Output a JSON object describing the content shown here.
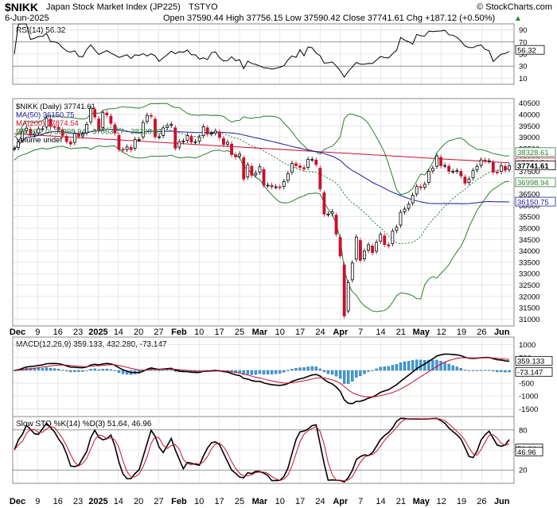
{
  "header": {
    "symbol": "$NIKK",
    "name": "Japan Stock Market Index (JP225)",
    "exchange": "TSTYO",
    "copyright": "© StockCharts.com",
    "date": "6-Jun-2025",
    "ohlc": "Open 37590.44  High 37756.15  Low 37590.42  Close 37741.61  Chg +187.12 (+0.50%)",
    "chg_arrow": "▲"
  },
  "rsi_panel": {
    "label": "RSI(14) 56.32",
    "value_badge": "56.32",
    "ticks": [
      "90",
      "70",
      "50",
      "30",
      "10"
    ]
  },
  "price_panel": {
    "legend": [
      {
        "text": "$NIKK (Daily) 37741.61",
        "color": "#000000"
      },
      {
        "text": "MA(50) 36150.75",
        "color": "#1a1a9c"
      },
      {
        "text": "MA(200) 37874.54",
        "color": "#c8102e"
      },
      {
        "text": "BB(20,2.0) 36998.94 - 37663.77 - 38328.61",
        "color": "#2e7d32"
      },
      {
        "text": "Volume undef",
        "color": "#000000"
      }
    ],
    "ticks": [
      "40500",
      "40000",
      "39500",
      "39000",
      "38500",
      "38000",
      "37500",
      "37000",
      "36500",
      "36000",
      "35500",
      "35000",
      "34500",
      "34000",
      "33500",
      "33000",
      "32500",
      "32000",
      "31500",
      "31000"
    ],
    "badges": [
      {
        "text": "38328.61",
        "value": 38328.61,
        "bg": "#ffffff",
        "fg": "#2e7d32",
        "border": "#2e7d32"
      },
      {
        "text": "37874.54",
        "value": 37874.54,
        "bg": "#ffffff",
        "fg": "#c8102e",
        "border": "#c8102e"
      },
      {
        "text": "37741.61",
        "value": 37741.61,
        "bg": "#ffffff",
        "fg": "#000000",
        "border": "#000000",
        "bold": true
      },
      {
        "text": "36998.94",
        "value": 36998.94,
        "bg": "#ffffff",
        "fg": "#2e7d32",
        "border": "#2e7d32"
      },
      {
        "text": "36150.75",
        "value": 36150.75,
        "bg": "#ffffff",
        "fg": "#1a1a9c",
        "border": "#1a1a9c"
      }
    ]
  },
  "macd_panel": {
    "label": "MACD(12,26,9) 359.133, 432.280, -73.147",
    "ticks": [
      "1000",
      "500",
      "0",
      "-500",
      "-1000",
      "-1500"
    ],
    "badges": [
      {
        "text": "359.133",
        "value": 359.133
      },
      {
        "text": "-73.147",
        "value": -73.147
      }
    ]
  },
  "sto_panel": {
    "label": "Slow STO %K(14) %D(3) 51.64, 46.96",
    "ticks": [
      "80",
      "50",
      "20"
    ],
    "badges": [
      {
        "text": "51.64",
        "value": 51.64
      },
      {
        "text": "46.96",
        "value": 46.96
      }
    ]
  },
  "x_axis": [
    "Dec",
    "9",
    "16",
    "23",
    "2025",
    "14",
    "20",
    "27",
    "Feb",
    "10",
    "17",
    "25",
    "Mar",
    "10",
    "17",
    "24",
    "Apr",
    "7",
    "14",
    "21",
    "May",
    "12",
    "19",
    "26",
    "Jun"
  ],
  "colors": {
    "up": "#000000",
    "down": "#c8102e",
    "ma50": "#1a1a9c",
    "ma200": "#c8102e",
    "bb": "#2e7d32",
    "bbmid": "#2e7d32",
    "hist": "#3f9ad6",
    "grid": "#d8d8d8",
    "rsi_neg": "#8b6f6f"
  },
  "chart_data": {
    "type": "candlestick",
    "title": "$NIKK Japan Stock Market Index (JP225) TSTYO",
    "dates": [
      "2024-12-02",
      "2024-12-03",
      "2024-12-04",
      "2024-12-05",
      "2024-12-06",
      "2024-12-09",
      "2024-12-10",
      "2024-12-11",
      "2024-12-12",
      "2024-12-13",
      "2024-12-16",
      "2024-12-17",
      "2024-12-18",
      "2024-12-19",
      "2024-12-20",
      "2024-12-23",
      "2024-12-24",
      "2024-12-25",
      "2024-12-26",
      "2024-12-27",
      "2024-12-30",
      "2025-01-06",
      "2025-01-07",
      "2025-01-08",
      "2025-01-09",
      "2025-01-10",
      "2025-01-14",
      "2025-01-15",
      "2025-01-16",
      "2025-01-17",
      "2025-01-20",
      "2025-01-21",
      "2025-01-22",
      "2025-01-23",
      "2025-01-24",
      "2025-01-27",
      "2025-01-28",
      "2025-01-29",
      "2025-01-30",
      "2025-01-31",
      "2025-02-03",
      "2025-02-04",
      "2025-02-05",
      "2025-02-06",
      "2025-02-07",
      "2025-02-10",
      "2025-02-12",
      "2025-02-13",
      "2025-02-14",
      "2025-02-17",
      "2025-02-18",
      "2025-02-19",
      "2025-02-20",
      "2025-02-21",
      "2025-02-25",
      "2025-02-26",
      "2025-02-27",
      "2025-02-28",
      "2025-03-03",
      "2025-03-04",
      "2025-03-05",
      "2025-03-06",
      "2025-03-07",
      "2025-03-10",
      "2025-03-11",
      "2025-03-12",
      "2025-03-13",
      "2025-03-14",
      "2025-03-17",
      "2025-03-18",
      "2025-03-19",
      "2025-03-21",
      "2025-03-24",
      "2025-03-25",
      "2025-03-26",
      "2025-03-27",
      "2025-03-28",
      "2025-03-31",
      "2025-04-01",
      "2025-04-02",
      "2025-04-03",
      "2025-04-04",
      "2025-04-07",
      "2025-04-08",
      "2025-04-09",
      "2025-04-10",
      "2025-04-11",
      "2025-04-14",
      "2025-04-15",
      "2025-04-16",
      "2025-04-17",
      "2025-04-18",
      "2025-04-21",
      "2025-04-22",
      "2025-04-23",
      "2025-04-24",
      "2025-04-25",
      "2025-04-28",
      "2025-04-30",
      "2025-05-01",
      "2025-05-02",
      "2025-05-07",
      "2025-05-08",
      "2025-05-09",
      "2025-05-12",
      "2025-05-13",
      "2025-05-14",
      "2025-05-15",
      "2025-05-16",
      "2025-05-19",
      "2025-05-20",
      "2025-05-21",
      "2025-05-22",
      "2025-05-23",
      "2025-05-26",
      "2025-05-27",
      "2025-05-28",
      "2025-05-29",
      "2025-05-30",
      "2025-06-02",
      "2025-06-03",
      "2025-06-04",
      "2025-06-05",
      "2025-06-06"
    ],
    "close": [
      38500,
      38800,
      39270,
      39400,
      39090,
      39160,
      39370,
      39370,
      39850,
      39470,
      39460,
      39360,
      39080,
      38810,
      38700,
      39160,
      39040,
      39130,
      39570,
      40280,
      39890,
      39310,
      40080,
      39980,
      39610,
      39190,
      38470,
      38440,
      38570,
      38450,
      38900,
      38900,
      39650,
      39960,
      39930,
      39020,
      39020,
      39410,
      39510,
      39570,
      38520,
      38800,
      38830,
      39070,
      38790,
      38800,
      39000,
      39460,
      39150,
      39170,
      39270,
      38990,
      38680,
      38780,
      38240,
      38140,
      38260,
      37160,
      37790,
      37330,
      37420,
      37700,
      36890,
      36890,
      36820,
      36820,
      36790,
      37050,
      37400,
      37850,
      37750,
      37670,
      37610,
      38030,
      38030,
      37800,
      36720,
      35620,
      35620,
      35720,
      34740,
      33780,
      31140,
      32600,
      33470,
      34610,
      33590,
      33990,
      34270,
      33920,
      34380,
      34730,
      34280,
      34220,
      34870,
      35040,
      35700,
      35840,
      36050,
      36450,
      36830,
      36780,
      36930,
      37500,
      37640,
      38180,
      37750,
      37760,
      37500,
      37500,
      37530,
      37300,
      36980,
      37160,
      37530,
      37720,
      38000,
      37960,
      37960,
      37470,
      37450,
      37750,
      37550,
      37740
    ],
    "ma50_last": 36150.75,
    "ma200_last": 37874.54,
    "bb": {
      "lower": 36998.94,
      "middle": 37663.77,
      "upper": 38328.61
    },
    "rsi_last": 56.32,
    "macd_last": {
      "macd": 359.133,
      "signal": 432.28,
      "hist": -73.147
    },
    "sto_last": {
      "k": 51.64,
      "d": 46.96
    },
    "price_ylim": [
      30700,
      40700
    ]
  }
}
